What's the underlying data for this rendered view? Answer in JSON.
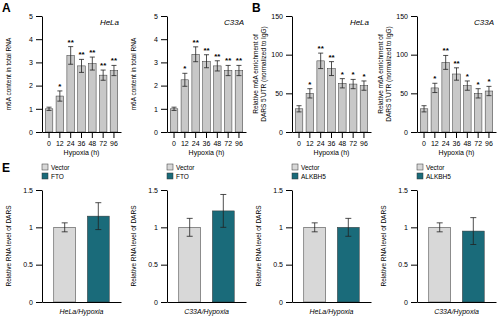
{
  "chart_data": [
    {
      "type": "bar",
      "title": "HeLa",
      "annotations": [
        "A"
      ],
      "categories": [
        "0",
        "12",
        "24",
        "36",
        "48",
        "72",
        "96"
      ],
      "values": [
        1.0,
        1.55,
        3.3,
        2.85,
        2.95,
        2.45,
        2.65
      ],
      "yerr": [
        0.07,
        0.22,
        0.38,
        0.28,
        0.28,
        0.22,
        0.22
      ],
      "significance": [
        null,
        "*",
        "**",
        "**",
        "**",
        "**",
        "**"
      ],
      "xlabel": "Hypoxia (h)",
      "ylabel": "m6A content in total RNA",
      "ylim": [
        0,
        5
      ],
      "yticks": [
        0,
        1,
        2,
        3,
        4,
        5
      ],
      "color": "#c8c8c8"
    },
    {
      "type": "bar",
      "title": "C33A",
      "categories": [
        "0",
        "12",
        "24",
        "36",
        "48",
        "72",
        "96"
      ],
      "values": [
        1.0,
        2.25,
        3.35,
        3.05,
        2.85,
        2.65,
        2.65
      ],
      "yerr": [
        0.07,
        0.28,
        0.32,
        0.28,
        0.22,
        0.22,
        0.22
      ],
      "significance": [
        null,
        "*",
        "**",
        "**",
        "**",
        "**",
        "**"
      ],
      "xlabel": "Hypoxia (h)",
      "ylabel": "m6A content in total RNA",
      "ylim": [
        0,
        5
      ],
      "yticks": [
        0,
        1,
        2,
        3,
        4,
        5
      ],
      "color": "#c8c8c8"
    },
    {
      "type": "bar",
      "title": "HeLa",
      "annotations": [
        "B"
      ],
      "categories": [
        "0",
        "12",
        "24",
        "36",
        "48",
        "72",
        "96"
      ],
      "values": [
        30,
        50,
        92,
        82,
        63,
        62,
        60
      ],
      "yerr": [
        4,
        6,
        10,
        9,
        6,
        6,
        6
      ],
      "significance": [
        null,
        "*",
        "**",
        "**",
        "*",
        "*",
        "*"
      ],
      "xlabel": "Hypoxia (h)",
      "ylabel": "Relative m6A enrichment of\nDARS 5ʹUTR (normalized to IgG)",
      "ylim": [
        0,
        150
      ],
      "yticks": [
        0,
        50,
        100,
        150
      ],
      "color": "#c8c8c8"
    },
    {
      "type": "bar",
      "title": "C33A",
      "categories": [
        "0",
        "12",
        "24",
        "36",
        "48",
        "72",
        "96"
      ],
      "values": [
        30,
        57,
        90,
        75,
        60,
        50,
        53
      ],
      "yerr": [
        4,
        6,
        9,
        8,
        6,
        6,
        6
      ],
      "significance": [
        null,
        "*",
        "**",
        "**",
        "*",
        "*",
        "*"
      ],
      "xlabel": "Hypoxia (h)",
      "ylabel": "Relative m6A enrichment of\nDARS 5ʹUTR (normalized to IgG)",
      "ylim": [
        0,
        150
      ],
      "yticks": [
        0,
        50,
        100,
        150
      ],
      "color": "#c8c8c8"
    },
    {
      "type": "bar",
      "annotations": [
        "E"
      ],
      "categories": [
        "Vector",
        "FTO"
      ],
      "colors": [
        "#d8d8d8",
        "#1a6b7a"
      ],
      "values": [
        1.0,
        1.15
      ],
      "yerr": [
        0.06,
        0.18
      ],
      "xlabel": "HeLa/Hypoxia",
      "ylabel": "Relative RNA level of DARS",
      "ylim": [
        0,
        1.5
      ],
      "yticks": [
        0,
        0.5,
        1,
        1.5
      ],
      "legend": "top",
      "tick_labels": "y"
    },
    {
      "type": "bar",
      "categories": [
        "Vector",
        "FTO"
      ],
      "colors": [
        "#d8d8d8",
        "#1a6b7a"
      ],
      "values": [
        1.0,
        1.22
      ],
      "yerr": [
        0.12,
        0.22
      ],
      "xlabel": "C33A/Hypoxia",
      "ylabel": "Relative RNA level of DARS",
      "ylim": [
        0,
        1.5
      ],
      "yticks": [
        0,
        0.5,
        1,
        1.5
      ],
      "legend": "top",
      "tick_labels": "y"
    },
    {
      "type": "bar",
      "categories": [
        "Vector",
        "ALKBH5"
      ],
      "colors": [
        "#d8d8d8",
        "#1a6b7a"
      ],
      "values": [
        1.0,
        1.0
      ],
      "yerr": [
        0.06,
        0.12
      ],
      "xlabel": "HeLa/Hypoxia",
      "ylabel": "Relative RNA level of DARS",
      "ylim": [
        0,
        1.5
      ],
      "yticks": [
        0,
        0.5,
        1,
        1.5
      ],
      "legend": "top",
      "tick_labels": "y"
    },
    {
      "type": "bar",
      "categories": [
        "Vector",
        "ALKBH5"
      ],
      "colors": [
        "#d8d8d8",
        "#1a6b7a"
      ],
      "values": [
        1.0,
        0.95
      ],
      "yerr": [
        0.06,
        0.18
      ],
      "xlabel": "C33A/Hypoxia",
      "ylabel": "Relative RNA level of DARS",
      "ylim": [
        0,
        1.5
      ],
      "yticks": [
        0,
        0.5,
        1,
        1.5
      ],
      "legend": "top",
      "tick_labels": "y"
    }
  ]
}
